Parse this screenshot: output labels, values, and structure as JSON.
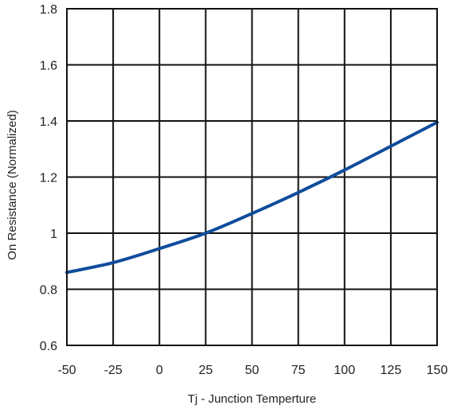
{
  "chart_data": {
    "type": "line",
    "title": "",
    "xlabel": "Tj - Junction Temperture",
    "ylabel": "On Resistance (Normalized)",
    "xlim": [
      -50,
      150
    ],
    "ylim": [
      0.6,
      1.8
    ],
    "x_ticks": [
      -50,
      -25,
      0,
      25,
      50,
      75,
      100,
      125,
      150
    ],
    "y_ticks": [
      0.6,
      0.8,
      1,
      1.2,
      1.4,
      1.6,
      1.8
    ],
    "x_tick_labels": [
      "-50",
      "-25",
      "0",
      "25",
      "50",
      "75",
      "100",
      "125",
      "150"
    ],
    "y_tick_labels": [
      "0.6",
      "0.8",
      "1",
      "1.2",
      "1.4",
      "1.6",
      "1.8"
    ],
    "grid": true,
    "legend": "none",
    "series": [
      {
        "color": "#0f4c9c",
        "x": [
          -50,
          -25,
          0,
          25,
          50,
          75,
          100,
          125,
          150
        ],
        "y": [
          0.86,
          0.895,
          0.945,
          1.0,
          1.07,
          1.145,
          1.225,
          1.31,
          1.395
        ]
      }
    ]
  }
}
